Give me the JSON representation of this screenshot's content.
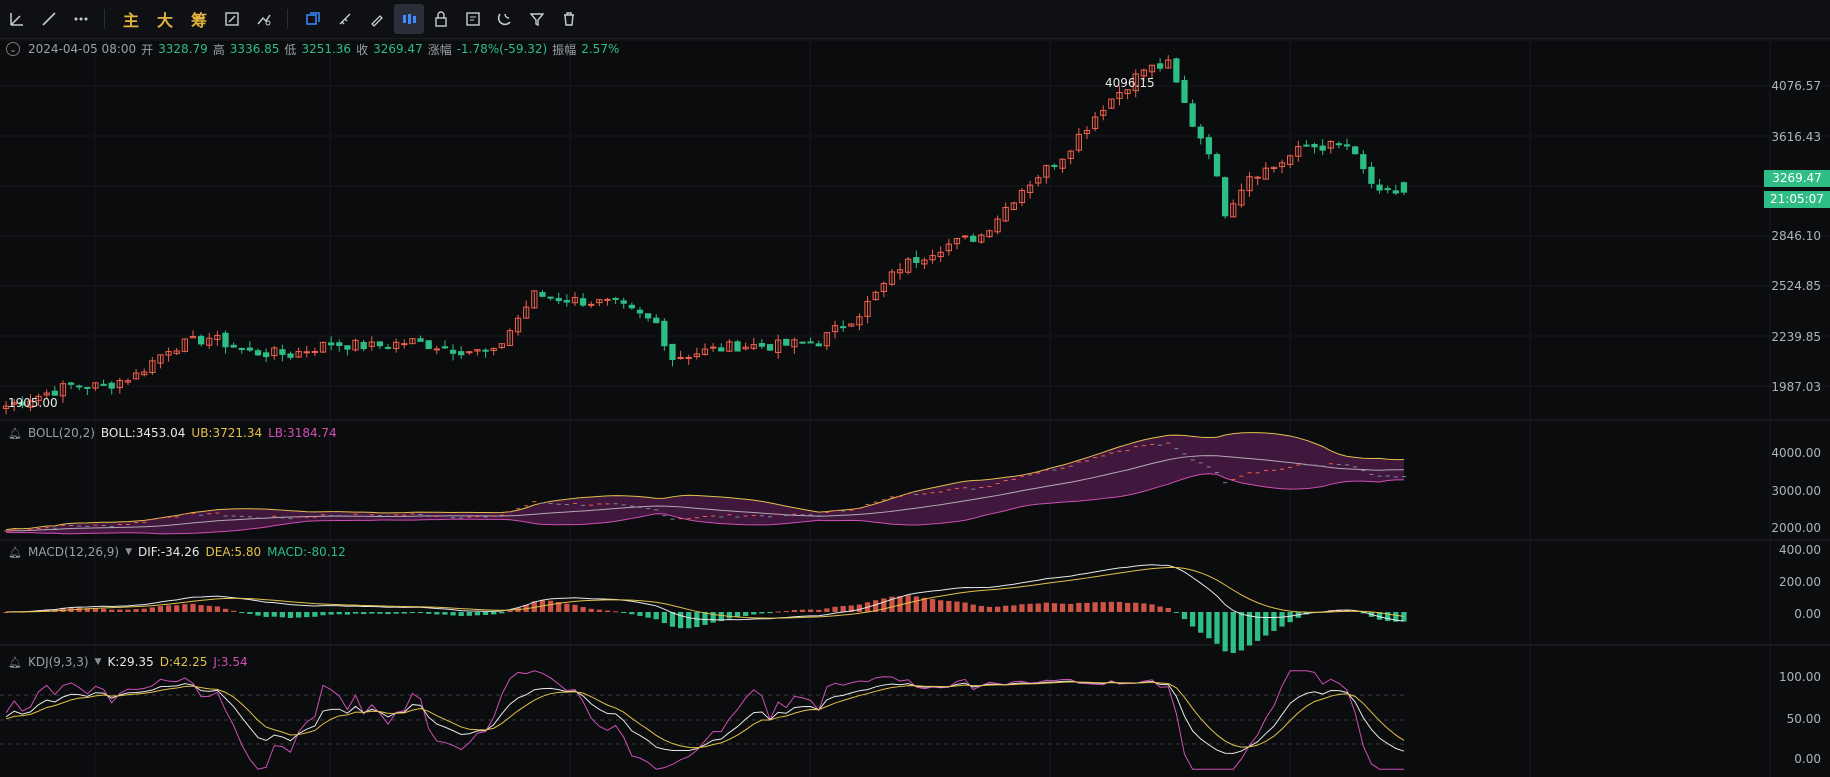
{
  "toolbar": {
    "main_label": "主",
    "big_label": "大",
    "chip_label": "筹"
  },
  "info": {
    "datetime": "2024-04-05 08:00",
    "open_label": "开",
    "open": "3328.79",
    "high_label": "高",
    "high": "3336.85",
    "low_label": "低",
    "low": "3251.36",
    "close_label": "收",
    "close": "3269.47",
    "change_label": "涨幅",
    "change": "-1.78%(-59.32)",
    "amp_label": "振幅",
    "amp": "2.57%"
  },
  "price_axis": [
    "4076.57",
    "3616.43",
    "2846.10",
    "2524.85",
    "2239.85",
    "1987.03"
  ],
  "last_price": "3269.47",
  "countdown": "21:05:07",
  "high_marker": "4096.15",
  "low_marker": "1905.00",
  "boll": {
    "name": "BOLL(20,2)",
    "boll": "BOLL:3453.04",
    "ub": "UB:3721.34",
    "lb": "LB:3184.74",
    "axis": [
      "4000.00",
      "3000.00",
      "2000.00"
    ]
  },
  "macd": {
    "name": "MACD(12,26,9)",
    "dif": "DIF:-34.26",
    "dea": "DEA:5.80",
    "macd": "MACD:-80.12",
    "axis": [
      "400.00",
      "200.00",
      "0.00"
    ]
  },
  "kdj": {
    "name": "KDJ(9,3,3)",
    "k": "K:29.35",
    "d": "D:42.25",
    "j": "J:3.54",
    "axis": [
      "100.00",
      "50.00",
      "0.00"
    ]
  },
  "colors": {
    "up": "#f0614e",
    "down": "#2ebd85",
    "boll_mid": "#e8e8e8",
    "ub": "#e2c14a",
    "lb": "#cf4fb5",
    "dif": "#e8e8e8",
    "dea": "#e2c14a",
    "k": "#e8e8e8",
    "d": "#e2c14a",
    "j": "#cf4fb5"
  },
  "chart_data": {
    "type": "candlestick",
    "anchor_points": [
      [
        0,
        1925
      ],
      [
        4,
        1990
      ],
      [
        8,
        2055
      ],
      [
        12,
        2050
      ],
      [
        16,
        2120
      ],
      [
        20,
        2290
      ],
      [
        25,
        2355
      ],
      [
        30,
        2265
      ],
      [
        35,
        2250
      ],
      [
        40,
        2320
      ],
      [
        45,
        2300
      ],
      [
        50,
        2330
      ],
      [
        55,
        2285
      ],
      [
        60,
        2255
      ],
      [
        65,
        2625
      ],
      [
        70,
        2590
      ],
      [
        75,
        2565
      ],
      [
        80,
        2445
      ],
      [
        82,
        2230
      ],
      [
        86,
        2270
      ],
      [
        90,
        2305
      ],
      [
        95,
        2305
      ],
      [
        100,
        2330
      ],
      [
        105,
        2510
      ],
      [
        110,
        2800
      ],
      [
        115,
        2925
      ],
      [
        120,
        3000
      ],
      [
        125,
        3290
      ],
      [
        130,
        3500
      ],
      [
        135,
        3810
      ],
      [
        140,
        4040
      ],
      [
        143,
        4070
      ],
      [
        146,
        3700
      ],
      [
        148,
        3540
      ],
      [
        150,
        3150
      ],
      [
        153,
        3380
      ],
      [
        156,
        3430
      ],
      [
        160,
        3560
      ],
      [
        165,
        3560
      ],
      [
        169,
        3250
      ],
      [
        171,
        3270
      ],
      [
        172,
        3269
      ]
    ],
    "candle_count": 173,
    "ylim": [
      1900,
      4100
    ]
  }
}
